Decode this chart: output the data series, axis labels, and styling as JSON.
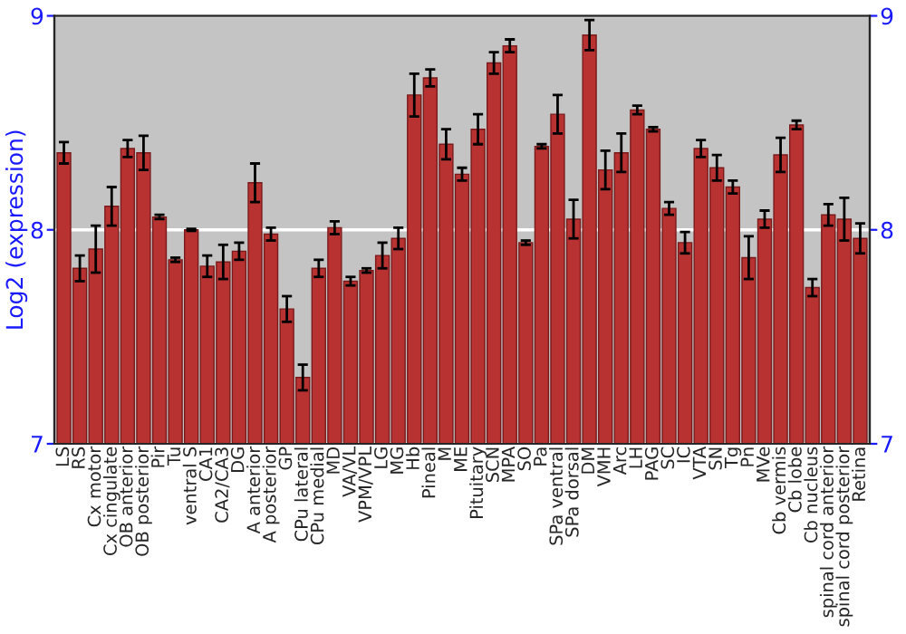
{
  "chart_data": {
    "type": "bar",
    "ylabel": "Log2 (expression)",
    "categories": [
      "LS",
      "RS",
      "Cx motor",
      "Cx cingulate",
      "OB anterior",
      "OB posterior",
      "Pir",
      "Tu",
      "ventral S",
      "CA1",
      "CA2/CA3",
      "DG",
      "A anterior",
      "A posterior",
      "GP",
      "CPu lateral",
      "CPu medial",
      "MD",
      "VA/VL",
      "VPM/VPL",
      "LG",
      "MG",
      "Hb",
      "Pineal",
      "M",
      "ME",
      "Pituitary",
      "SCN",
      "MPA",
      "SO",
      "Pa",
      "SPa ventral",
      "SPa dorsal",
      "DM",
      "VMH",
      "Arc",
      "LH",
      "PAG",
      "SC",
      "IC",
      "VTA",
      "SN",
      "Tg",
      "Pn",
      "MVe",
      "Cb vermis",
      "Cb lobe",
      "Cb nucleus",
      "spinal cord anterior",
      "spinal cord posterior",
      "Retina"
    ],
    "series": [
      {
        "color": "#b83232",
        "values": [
          8.36,
          7.82,
          7.91,
          8.11,
          8.38,
          8.36,
          8.06,
          7.86,
          8.0,
          7.83,
          7.85,
          7.9,
          8.22,
          7.98,
          7.63,
          7.31,
          7.82,
          8.01,
          7.76,
          7.81,
          7.88,
          7.96,
          8.63,
          8.71,
          8.4,
          8.26,
          8.47,
          8.78,
          8.86,
          7.94,
          8.39,
          8.54,
          8.05,
          8.91,
          8.28,
          8.36,
          8.56,
          8.47,
          8.1,
          7.94,
          8.38,
          8.29,
          8.2,
          7.87,
          8.05,
          8.35,
          8.49,
          7.73,
          8.07,
          8.05,
          7.96
        ],
        "errors": [
          0.05,
          0.06,
          0.11,
          0.09,
          0.04,
          0.08,
          0.01,
          0.01,
          0.005,
          0.05,
          0.08,
          0.04,
          0.09,
          0.03,
          0.06,
          0.06,
          0.04,
          0.03,
          0.02,
          0.01,
          0.06,
          0.05,
          0.1,
          0.04,
          0.07,
          0.03,
          0.07,
          0.05,
          0.03,
          0.01,
          0.01,
          0.09,
          0.09,
          0.07,
          0.09,
          0.09,
          0.02,
          0.01,
          0.03,
          0.05,
          0.04,
          0.06,
          0.03,
          0.1,
          0.04,
          0.08,
          0.02,
          0.04,
          0.05,
          0.1,
          0.07
        ]
      }
    ],
    "ylim": [
      7,
      9
    ],
    "yticks": [
      7,
      8,
      9
    ],
    "y2lim": [
      7,
      9
    ],
    "y2ticks": [
      7,
      8,
      9
    ],
    "grid": "y"
  }
}
